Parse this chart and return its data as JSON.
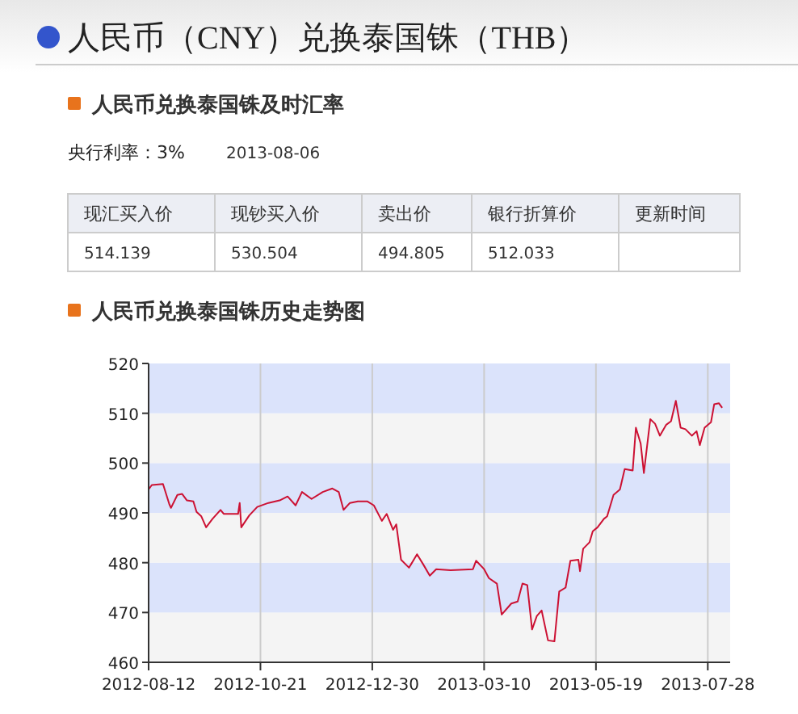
{
  "chart_data": {
    "type": "line",
    "title": "人民币（CNY）兑换泰国铢（THB）",
    "subtitle": "人民币兑换泰国铢历史走势图",
    "annotations": [
      "人民币兑换泰国铢及时汇率",
      "央行利率：3%",
      "2013-08-06",
      "现汇买入价",
      "现钞买入价",
      "卖出价",
      "银行折算价",
      "更新时间",
      "514.139",
      "530.504",
      "494.805",
      "512.033"
    ],
    "x": [
      "2012-08-12",
      "2012-08-14",
      "2012-08-21",
      "2012-08-25",
      "2012-08-26",
      "2012-08-30",
      "2012-09-02",
      "2012-09-05",
      "2012-09-09",
      "2012-09-11",
      "2012-09-14",
      "2012-09-17",
      "2012-09-21",
      "2012-09-26",
      "2012-09-28",
      "2012-10-07",
      "2012-10-08",
      "2012-10-09",
      "2012-10-14",
      "2012-10-19",
      "2012-10-26",
      "2012-11-02",
      "2012-11-07",
      "2012-11-12",
      "2012-11-16",
      "2012-11-22",
      "2012-11-29",
      "2012-12-05",
      "2012-12-09",
      "2012-12-12",
      "2012-12-16",
      "2012-12-21",
      "2012-12-27",
      "2012-12-31",
      "2013-01-05",
      "2013-01-08",
      "2013-01-12",
      "2013-01-14",
      "2013-01-17",
      "2013-01-22",
      "2013-01-27",
      "2013-01-31",
      "2013-02-04",
      "2013-02-08",
      "2013-02-17",
      "2013-03-03",
      "2013-03-05",
      "2013-03-10",
      "2013-03-13",
      "2013-03-18",
      "2013-03-21",
      "2013-03-27",
      "2013-03-31",
      "2013-04-03",
      "2013-04-06",
      "2013-04-09",
      "2013-04-12",
      "2013-04-15",
      "2013-04-19",
      "2013-04-23",
      "2013-04-26",
      "2013-04-30",
      "2013-05-03",
      "2013-05-08",
      "2013-05-09",
      "2013-05-11",
      "2013-05-15",
      "2013-05-17",
      "2013-05-20",
      "2013-05-24",
      "2013-05-26",
      "2013-05-30",
      "2013-06-03",
      "2013-06-06",
      "2013-06-11",
      "2013-06-13",
      "2013-06-16",
      "2013-06-18",
      "2013-06-22",
      "2013-06-25",
      "2013-06-28",
      "2013-07-02",
      "2013-07-05",
      "2013-07-08",
      "2013-07-11",
      "2013-07-14",
      "2013-07-18",
      "2013-07-21",
      "2013-07-23",
      "2013-07-26",
      "2013-07-30",
      "2013-08-01",
      "2013-08-04",
      "2013-08-06"
    ],
    "series": [
      {
        "color": "#cc1133",
        "values": [
          494.7,
          495.6,
          495.8,
          491.7,
          491,
          493.6,
          493.8,
          492.5,
          492.3,
          490.2,
          489.3,
          487.1,
          488.8,
          490.6,
          489.8,
          489.8,
          492,
          487.1,
          489.5,
          491.2,
          492,
          492.5,
          493.3,
          491.5,
          494.2,
          492.8,
          494.2,
          494.9,
          494.2,
          490.6,
          492,
          492.3,
          492.3,
          491.5,
          488.4,
          489.8,
          486.6,
          487.7,
          480.6,
          479,
          481.7,
          479.6,
          477.4,
          478.7,
          478.5,
          478.7,
          480.4,
          478.7,
          476.9,
          475.8,
          469.6,
          471.8,
          472.2,
          475.8,
          475.5,
          466.6,
          469.3,
          470.4,
          464.4,
          464.2,
          474.2,
          475,
          480.4,
          480.6,
          478.3,
          482.8,
          484.1,
          486.3,
          487.1,
          488.8,
          489.3,
          493.6,
          494.7,
          498.8,
          498.5,
          507.1,
          503.9,
          498,
          508.8,
          507.9,
          505.5,
          507.7,
          508.4,
          512.5,
          507.1,
          506.8,
          505.5,
          506.4,
          503.6,
          507.1,
          508.2,
          511.8,
          512,
          511.1
        ]
      }
    ],
    "xlim": [
      "2012-08-12",
      "2013-08-11"
    ],
    "xticks": [
      {
        "value": "2012-08-12",
        "label": "2012-08-12"
      },
      {
        "value": "2012-10-21",
        "label": "2012-10-21"
      },
      {
        "value": "2012-12-30",
        "label": "2012-12-30"
      },
      {
        "value": "2013-03-10",
        "label": "2013-03-10"
      },
      {
        "value": "2013-05-19",
        "label": "2013-05-19"
      },
      {
        "value": "2013-07-28",
        "label": "2013-07-28"
      }
    ],
    "ylim": [
      460,
      520
    ],
    "yticks": [
      460,
      470,
      480,
      490,
      500,
      510,
      520
    ],
    "grid": true,
    "marker": "none",
    "line_style": "solid"
  }
}
